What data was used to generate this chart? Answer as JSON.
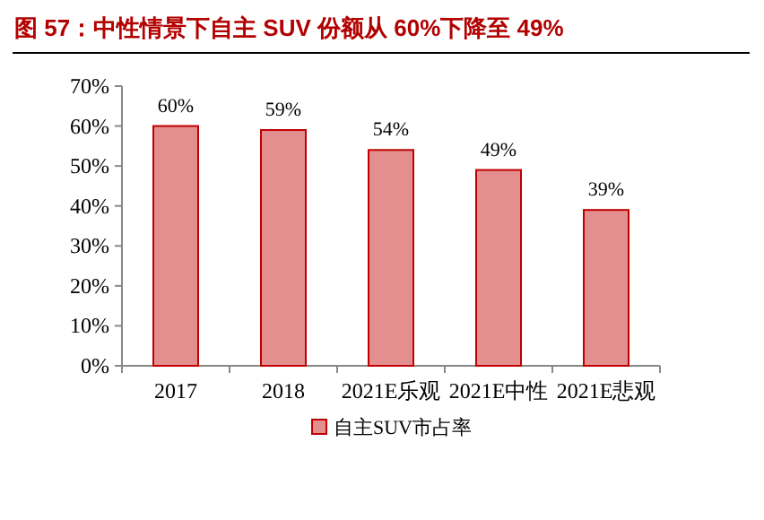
{
  "chart_data": {
    "type": "bar",
    "title": "图 57：中性情景下自主 SUV 份额从 60%下降至 49%",
    "categories": [
      "2017",
      "2018",
      "2021E乐观",
      "2021E中性",
      "2021E悲观"
    ],
    "series": [
      {
        "name": "自主SUV市占率",
        "color": "#e38f8f",
        "values": [
          60,
          59,
          54,
          49,
          39
        ],
        "value_labels": [
          "60%",
          "59%",
          "54%",
          "49%",
          "39%"
        ]
      }
    ],
    "ylim": [
      0,
      70
    ],
    "yticks": [
      {
        "value": 0,
        "label": "0%"
      },
      {
        "value": 10,
        "label": "10%"
      },
      {
        "value": 20,
        "label": "20%"
      },
      {
        "value": 30,
        "label": "30%"
      },
      {
        "value": 40,
        "label": "40%"
      },
      {
        "value": 50,
        "label": "50%"
      },
      {
        "value": 60,
        "label": "60%"
      },
      {
        "value": 70,
        "label": "70%"
      }
    ],
    "grid": false,
    "legend": "bottom"
  }
}
